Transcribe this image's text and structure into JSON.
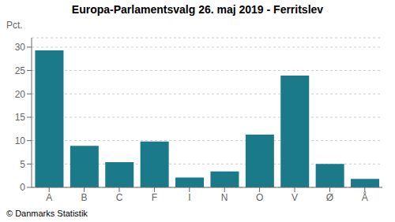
{
  "chart_data": {
    "type": "bar",
    "title": "Europa-Parlamentsvalg 26. maj 2019 - Ferritslev",
    "ylabel": "Pct.",
    "annotations": [
      "© Danmarks Statistik"
    ],
    "categories": [
      "A",
      "B",
      "C",
      "F",
      "I",
      "N",
      "O",
      "V",
      "Ø",
      "Å"
    ],
    "values": [
      29.3,
      8.9,
      5.4,
      9.8,
      2.1,
      3.4,
      11.3,
      23.9,
      5.0,
      1.8
    ],
    "color": "#1a7a8a",
    "ylim": [
      0,
      32
    ],
    "yticks": [
      0,
      5,
      10,
      15,
      20,
      25,
      30
    ],
    "grid": true
  }
}
